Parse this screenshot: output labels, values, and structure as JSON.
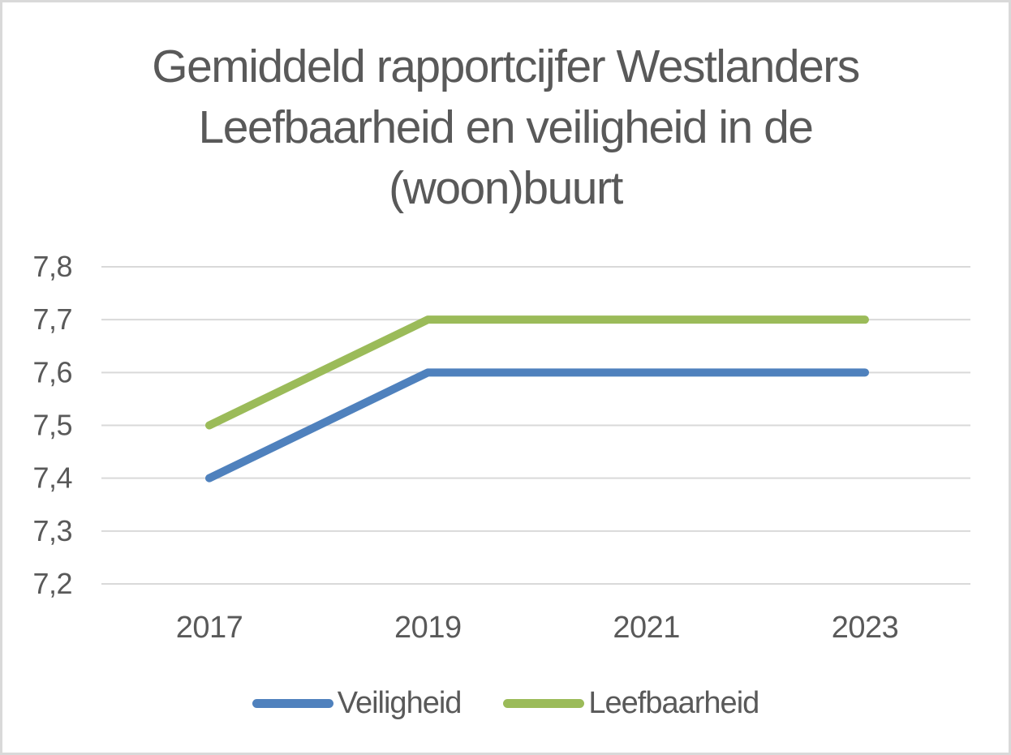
{
  "frame": {
    "background_color": "#ffffff",
    "border_color": "#d9d9d9"
  },
  "chart_data": {
    "type": "line",
    "title": "Gemiddeld rapportcijfer Westlanders Leefbaarheid en veiligheid in de (woon)buurt",
    "title_lines": [
      "Gemiddeld rapportcijfer Westlanders",
      "Leefbaarheid en veiligheid in de",
      "(woon)buurt"
    ],
    "categories": [
      "2017",
      "2019",
      "2021",
      "2023"
    ],
    "series": [
      {
        "name": "Veiligheid",
        "values": [
          7.4,
          7.6,
          7.6,
          7.6
        ],
        "color": "#4F81BD"
      },
      {
        "name": "Leefbaarheid",
        "values": [
          7.5,
          7.7,
          7.7,
          7.7
        ],
        "color": "#9BBB59"
      }
    ],
    "y_axis": {
      "min": 7.2,
      "max": 7.8,
      "step": 0.1,
      "tick_labels": [
        "7,2",
        "7,3",
        "7,4",
        "7,5",
        "7,6",
        "7,7",
        "7,8"
      ],
      "decimal_separator": ","
    },
    "xlabel": "",
    "ylabel": "",
    "grid": "horizontal",
    "legend_position": "bottom",
    "text_color": "#595959",
    "gridline_color": "#d9d9d9",
    "line_width": 10
  }
}
